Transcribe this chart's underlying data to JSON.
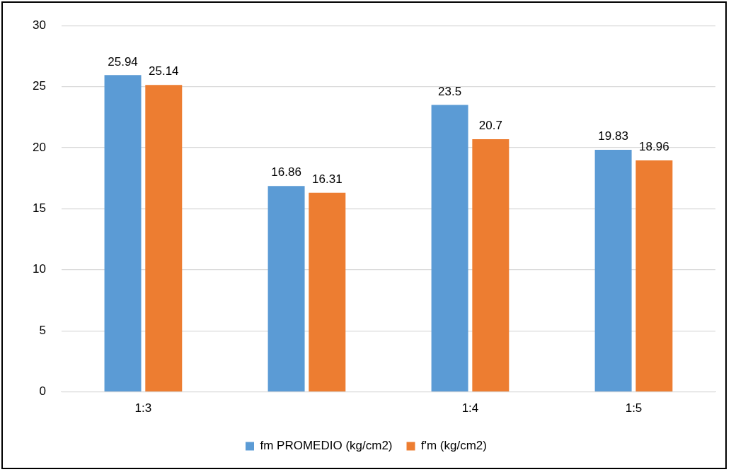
{
  "chart_data": {
    "type": "bar",
    "categories": [
      "1:3",
      null,
      "1:4",
      "1:5"
    ],
    "series": [
      {
        "name": "fm PROMEDIO (kg/cm2)",
        "color": "#5b9bd5",
        "values": [
          25.94,
          16.86,
          23.5,
          19.83
        ]
      },
      {
        "name": "f'm (kg/cm2)",
        "color": "#ed7d31",
        "values": [
          25.14,
          16.31,
          20.7,
          18.96
        ]
      }
    ],
    "ylim": [
      0,
      30
    ],
    "yticks": [
      0,
      5,
      10,
      15,
      20,
      25,
      30
    ],
    "grid": "y",
    "legend": "bottom",
    "data_labels": true
  }
}
